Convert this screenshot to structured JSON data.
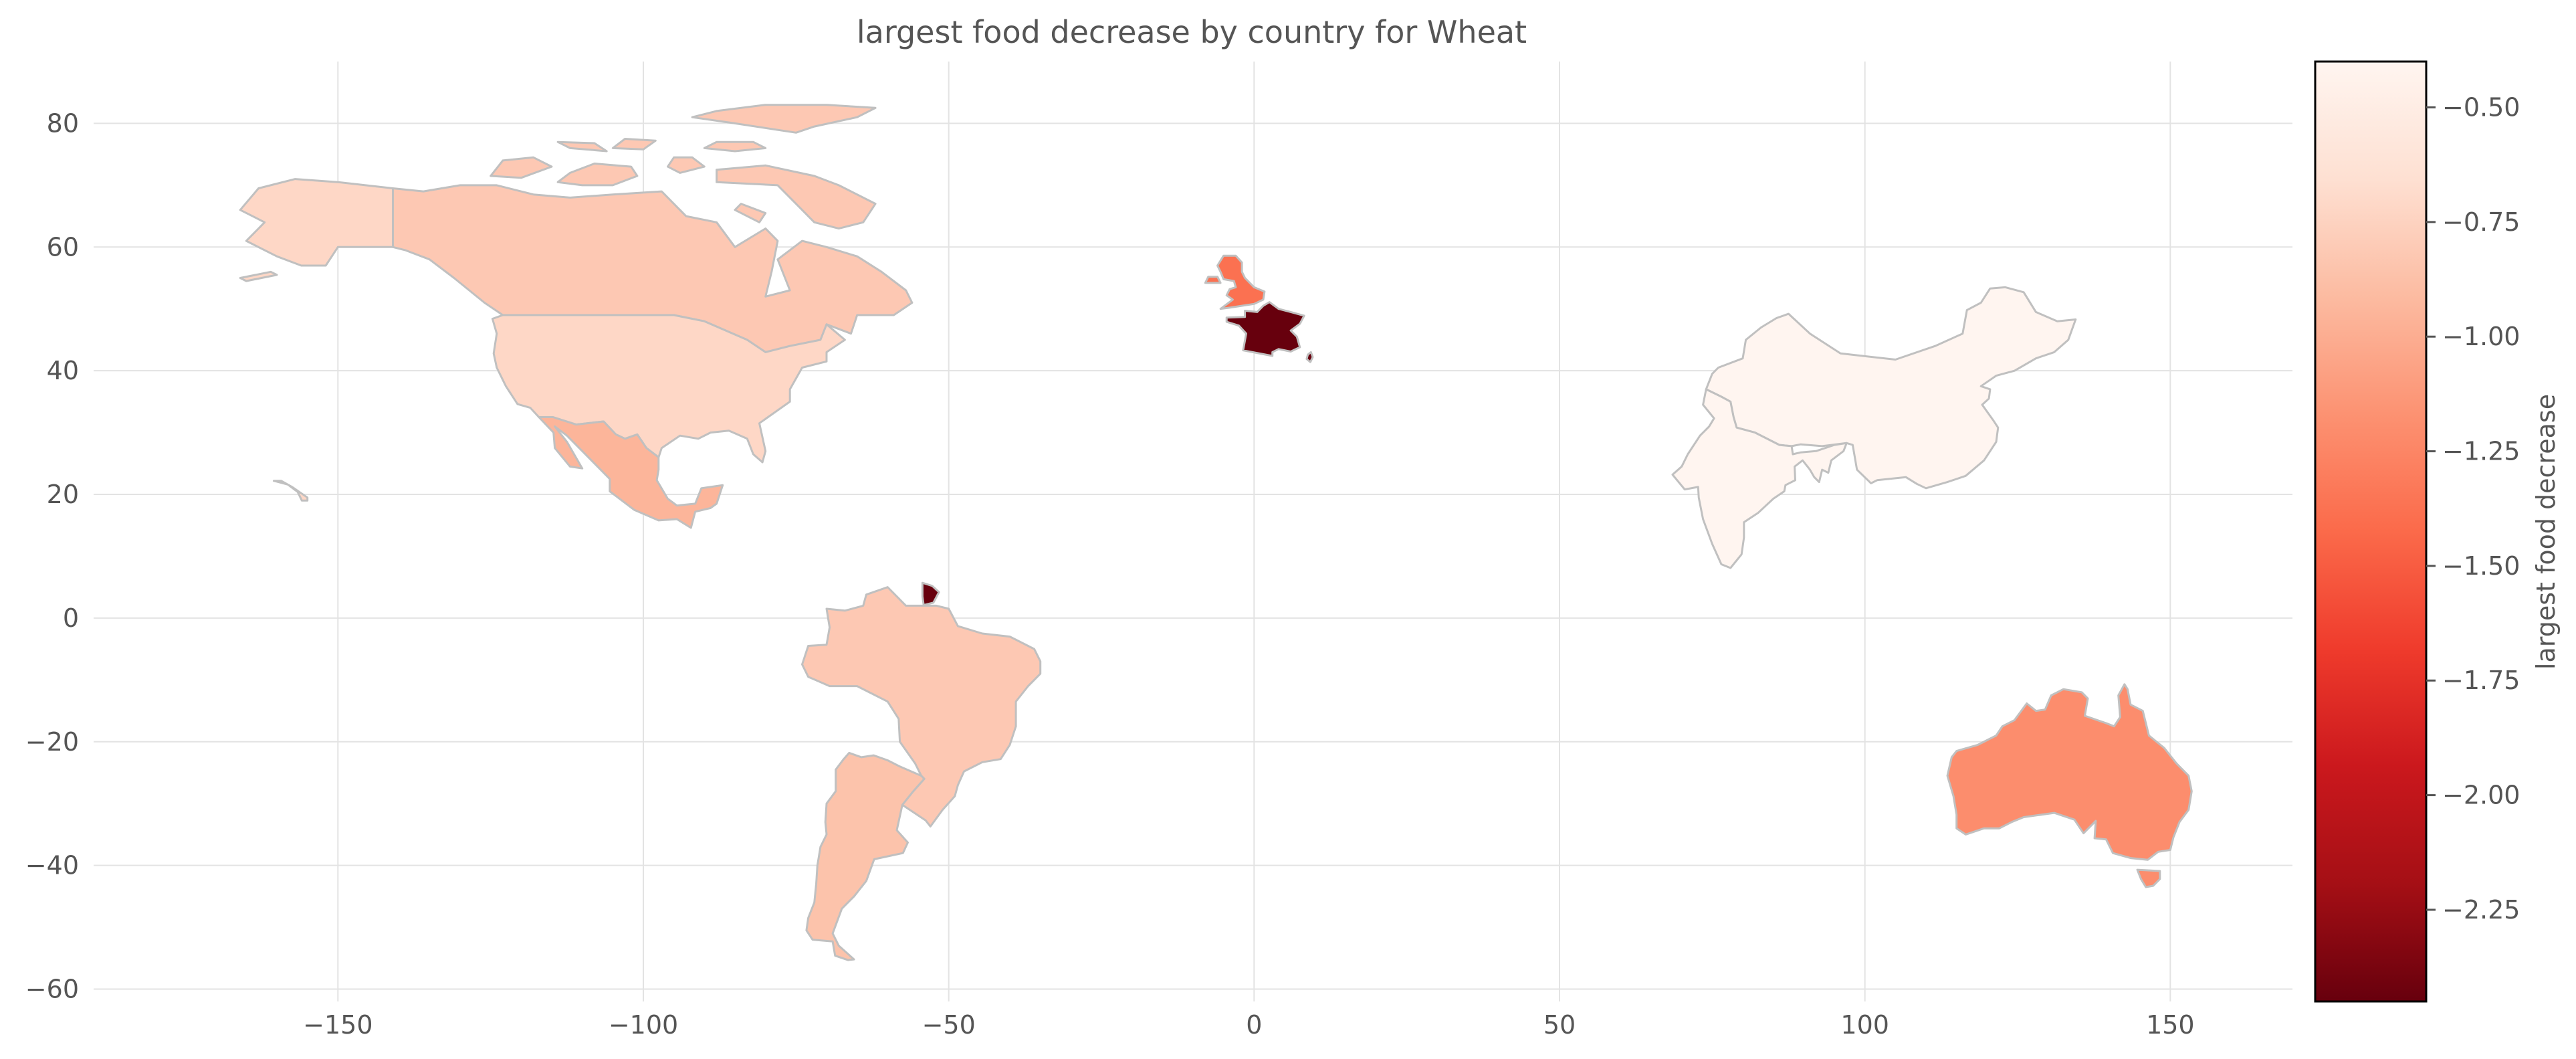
{
  "chart_data": {
    "type": "choropleth",
    "title": "largest food decrease by country for Wheat",
    "xlim": [
      -190,
      170
    ],
    "ylim": [
      -62,
      90
    ],
    "xticks": [
      -150,
      -100,
      -50,
      0,
      50,
      100,
      150
    ],
    "yticks": [
      80,
      60,
      40,
      20,
      0,
      -20,
      -40,
      -60
    ],
    "grid": true,
    "colorbar": {
      "label": "largest food decrease",
      "min": -2.45,
      "max": -0.4,
      "ticks": [
        -0.5,
        -0.75,
        -1.0,
        -1.25,
        -1.5,
        -1.75,
        -2.0,
        -2.25
      ],
      "colormap": "Reds_r",
      "stops": [
        "#67000d",
        "#a50f15",
        "#cb181d",
        "#ef3b2c",
        "#fb6a4a",
        "#fc9272",
        "#fcbba1",
        "#fee0d2",
        "#fff5f0"
      ]
    },
    "regions": [
      {
        "name": "Canada",
        "value": -0.82
      },
      {
        "name": "Alaska",
        "value": -0.72
      },
      {
        "name": "United States",
        "value": -0.72
      },
      {
        "name": "Mexico",
        "value": -0.95
      },
      {
        "name": "Hawaii",
        "value": -0.72
      },
      {
        "name": "Brazil",
        "value": -0.82
      },
      {
        "name": "Argentina",
        "value": -0.86
      },
      {
        "name": "French Guiana",
        "value": -2.45
      },
      {
        "name": "United Kingdom",
        "value": -1.38
      },
      {
        "name": "France",
        "value": -2.45
      },
      {
        "name": "Corsica",
        "value": -2.45
      },
      {
        "name": "China",
        "value": -0.4
      },
      {
        "name": "India",
        "value": -0.4
      },
      {
        "name": "Australia",
        "value": -1.2
      },
      {
        "name": "Tasmania",
        "value": -1.2
      }
    ]
  }
}
